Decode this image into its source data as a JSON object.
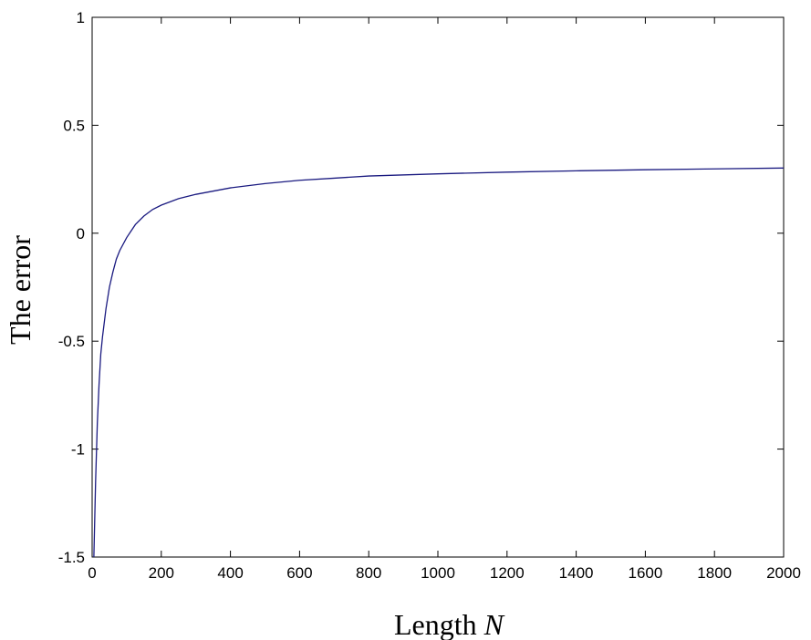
{
  "chart_data": {
    "type": "line",
    "title": "",
    "xlabel": "Length",
    "xlabel_var": "N",
    "ylabel": "The error",
    "xlim": [
      0,
      2000
    ],
    "ylim": [
      -1.5,
      1
    ],
    "x_ticks": [
      0,
      200,
      400,
      600,
      800,
      1000,
      1200,
      1400,
      1600,
      1800,
      2000
    ],
    "x_tick_labels": [
      "0",
      "200",
      "400",
      "600",
      "800",
      "1000",
      "1200",
      "1400",
      "1600",
      "1800",
      "2000"
    ],
    "y_ticks": [
      -1.5,
      -1,
      -0.5,
      0,
      0.5,
      1
    ],
    "y_tick_labels": [
      "-1.5",
      "-1",
      "-0.5",
      "0",
      "0.5",
      "1"
    ],
    "grid": false,
    "series": [
      {
        "color": "#1a1a80",
        "x": [
          5,
          10,
          15,
          20,
          25,
          30,
          40,
          50,
          60,
          70,
          80,
          100,
          125,
          150,
          175,
          200,
          250,
          300,
          400,
          500,
          600,
          700,
          800,
          1000,
          1200,
          1400,
          1600,
          1800,
          2000
        ],
        "y": [
          -1.5,
          -1.15,
          -0.88,
          -0.7,
          -0.56,
          -0.48,
          -0.35,
          -0.25,
          -0.18,
          -0.12,
          -0.08,
          -0.02,
          0.04,
          0.08,
          0.11,
          0.13,
          0.16,
          0.18,
          0.21,
          0.23,
          0.245,
          0.255,
          0.265,
          0.275,
          0.283,
          0.289,
          0.294,
          0.298,
          0.302
        ]
      }
    ]
  }
}
